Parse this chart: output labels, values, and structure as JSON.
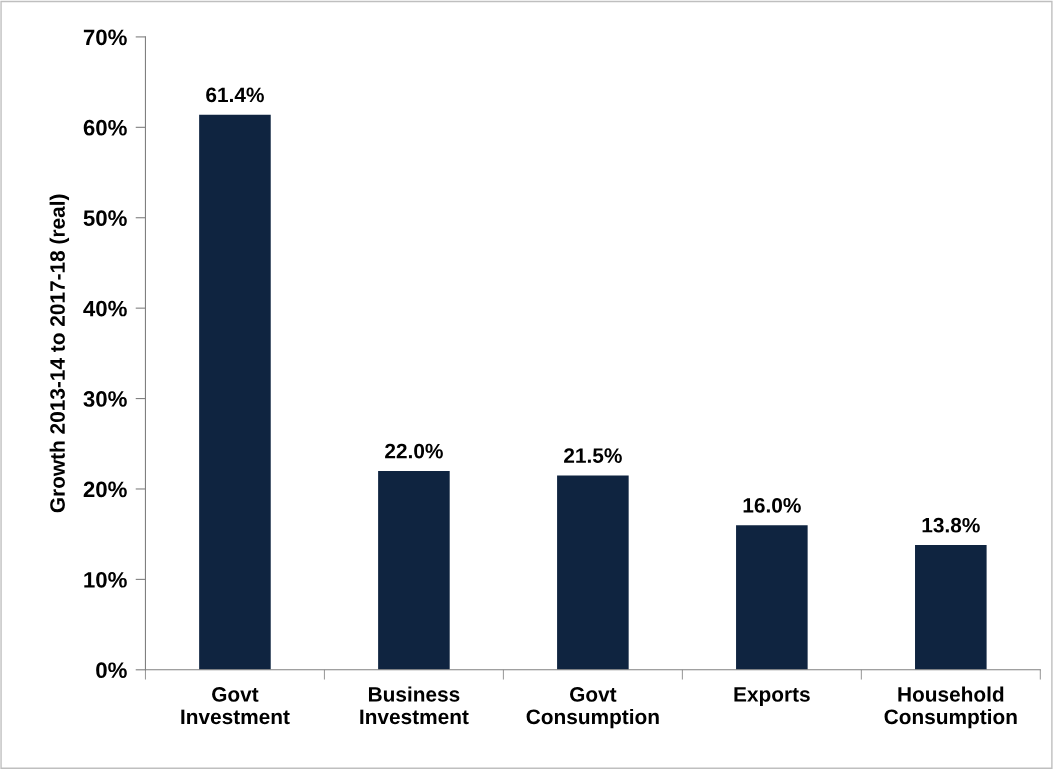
{
  "chart_data": {
    "type": "bar",
    "ylabel": "Growth 2013-14 to 2017-18 (real)",
    "categories": [
      "Govt\nInvestment",
      "Business\nInvestment",
      "Govt\nConsumption",
      "Exports",
      "Household\nConsumption"
    ],
    "values": [
      61.4,
      22.0,
      21.5,
      16.0,
      13.8
    ],
    "value_labels": [
      "61.4%",
      "22.0%",
      "21.5%",
      "16.0%",
      "13.8%"
    ],
    "color": "#0f2440",
    "ylim": [
      0,
      70
    ],
    "yticks": [
      {
        "value": 0,
        "label": "0%"
      },
      {
        "value": 10,
        "label": "10%"
      },
      {
        "value": 20,
        "label": "20%"
      },
      {
        "value": 30,
        "label": "30%"
      },
      {
        "value": 40,
        "label": "40%"
      },
      {
        "value": 50,
        "label": "50%"
      },
      {
        "value": 60,
        "label": "60%"
      },
      {
        "value": 70,
        "label": "70%"
      }
    ],
    "grid": false,
    "legend": false
  }
}
